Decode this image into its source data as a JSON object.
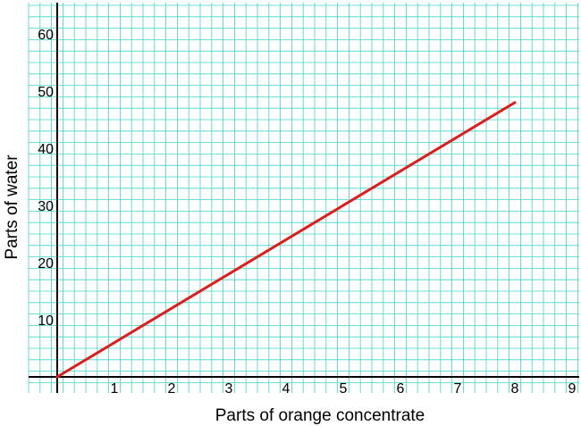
{
  "chart_data": {
    "type": "line",
    "title": "",
    "xlabel": "Parts of orange concentrate",
    "ylabel": "Parts of water",
    "xlim": [
      -0.5,
      9.1
    ],
    "ylim": [
      -3,
      66
    ],
    "x_ticks": [
      1,
      2,
      3,
      4,
      5,
      6,
      7,
      8,
      9
    ],
    "y_ticks": [
      10,
      20,
      30,
      40,
      50,
      60
    ],
    "grid": true,
    "grid_minor_step_x": 0.2,
    "grid_major_step_x": 1,
    "grid_minor_step_y": 2,
    "grid_major_step_y": 10,
    "series": [
      {
        "x": [
          0,
          8
        ],
        "y": [
          0,
          48
        ]
      }
    ]
  },
  "colors": {
    "background": "#ffffff",
    "grid_minor": "#3fd6c9",
    "grid_major": "#1ab8ad",
    "axis": "#000000",
    "line": "#e01b1b"
  }
}
